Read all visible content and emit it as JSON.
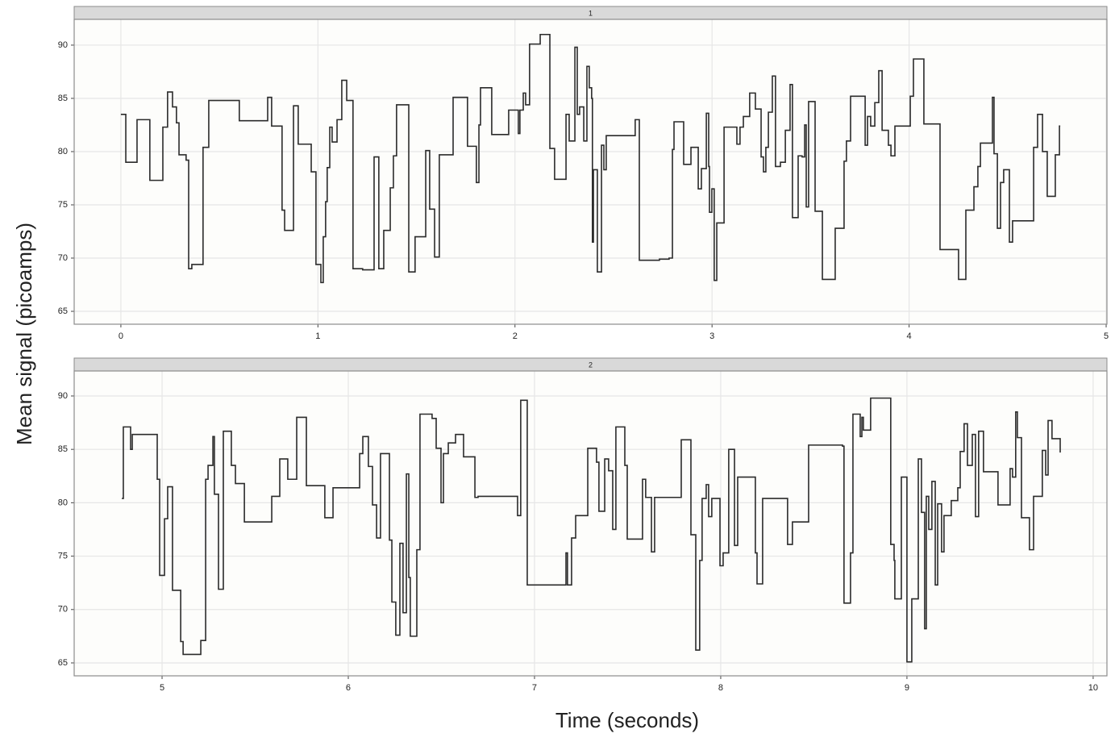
{
  "chart_data": [
    {
      "type": "line",
      "step": "post",
      "title": "1",
      "ylabel": "Mean signal (picoamps)",
      "color": "#2b2b2b",
      "grid": true,
      "xlim": [
        -0.237,
        5.004
      ],
      "ylim": [
        63.79,
        92.42
      ],
      "xticks": [
        0,
        1,
        2,
        3,
        4,
        5
      ],
      "yticks": [
        65,
        70,
        75,
        80,
        85,
        90
      ],
      "x": [
        0,
        0.025,
        0.082,
        0.147,
        0.213,
        0.237,
        0.262,
        0.282,
        0.295,
        0.331,
        0.344,
        0.36,
        0.417,
        0.446,
        0.601,
        0.745,
        0.765,
        0.818,
        0.831,
        0.876,
        0.9,
        0.966,
        0.99,
        1.015,
        1.027,
        1.039,
        1.047,
        1.06,
        1.072,
        1.097,
        1.121,
        1.146,
        1.178,
        1.227,
        1.285,
        1.309,
        1.334,
        1.367,
        1.383,
        1.399,
        1.461,
        1.493,
        1.547,
        1.567,
        1.592,
        1.616,
        1.686,
        1.759,
        1.804,
        1.817,
        1.825,
        1.882,
        1.968,
        2.017,
        2.025,
        2.042,
        2.054,
        2.074,
        2.128,
        2.177,
        2.201,
        2.259,
        2.275,
        2.304,
        2.316,
        2.328,
        2.349,
        2.365,
        2.377,
        2.389,
        2.393,
        2.398,
        2.418,
        2.439,
        2.451,
        2.463,
        2.61,
        2.631,
        2.733,
        2.782,
        2.799,
        2.807,
        2.856,
        2.893,
        2.93,
        2.946,
        2.971,
        2.983,
        2.987,
        2.999,
        3.011,
        3.024,
        3.061,
        3.126,
        3.142,
        3.159,
        3.191,
        3.22,
        3.249,
        3.261,
        3.273,
        3.286,
        3.306,
        3.322,
        3.347,
        3.372,
        3.396,
        3.408,
        3.437,
        3.457,
        3.47,
        3.478,
        3.49,
        3.523,
        3.56,
        3.625,
        3.67,
        3.682,
        3.703,
        3.777,
        3.789,
        3.805,
        3.826,
        3.846,
        3.863,
        3.895,
        3.908,
        3.928,
        4.006,
        4.022,
        4.075,
        4.157,
        4.251,
        4.288,
        4.329,
        4.349,
        4.362,
        4.423,
        4.431,
        4.448,
        4.464,
        4.48,
        4.509,
        4.525,
        4.632,
        4.652,
        4.677,
        4.701,
        4.742,
        4.763,
        4.767
      ],
      "values": [
        83.5,
        79.0,
        83.0,
        77.3,
        82.3,
        85.6,
        84.2,
        82.7,
        79.7,
        79.2,
        69.0,
        69.4,
        80.4,
        84.8,
        82.9,
        85.1,
        82.4,
        74.5,
        72.6,
        84.3,
        80.7,
        78.1,
        69.4,
        67.7,
        72.0,
        75.3,
        78.5,
        82.3,
        80.9,
        83.0,
        86.7,
        84.8,
        69.0,
        68.9,
        79.5,
        69.0,
        72.6,
        76.6,
        79.6,
        84.4,
        68.7,
        72.0,
        80.1,
        74.6,
        70.1,
        79.7,
        85.1,
        80.5,
        77.1,
        82.5,
        86.0,
        81.6,
        83.9,
        81.7,
        83.9,
        85.5,
        84.4,
        90.1,
        91.0,
        80.3,
        77.4,
        83.5,
        81.0,
        89.8,
        83.5,
        84.2,
        81.0,
        88.0,
        86.0,
        85.0,
        71.5,
        78.3,
        68.7,
        80.6,
        78.3,
        81.5,
        83.0,
        69.8,
        69.9,
        70.0,
        80.2,
        82.8,
        78.8,
        80.4,
        76.5,
        78.4,
        83.6,
        78.6,
        74.3,
        76.5,
        67.9,
        73.3,
        82.3,
        80.7,
        82.3,
        83.3,
        85.5,
        84.0,
        79.5,
        78.1,
        80.4,
        83.7,
        87.1,
        78.6,
        79.0,
        82.0,
        86.3,
        73.8,
        79.6,
        79.5,
        82.5,
        74.8,
        84.7,
        74.4,
        68.0,
        72.8,
        79.1,
        81.0,
        85.2,
        80.6,
        83.3,
        82.4,
        84.6,
        87.6,
        82.0,
        80.6,
        79.6,
        82.4,
        85.2,
        88.7,
        82.6,
        70.8,
        68.0,
        74.5,
        76.7,
        78.6,
        80.8,
        85.1,
        79.8,
        72.8,
        77.1,
        78.3,
        71.5,
        73.5,
        80.4,
        83.5,
        80.0,
        75.8,
        79.7,
        82.4,
        82.4
      ]
    },
    {
      "type": "line",
      "step": "post",
      "title": "2",
      "xlabel": "Time (seconds)",
      "color": "#2b2b2b",
      "grid": true,
      "xlim": [
        4.528,
        10.074
      ],
      "ylim": [
        63.79,
        92.34
      ],
      "xticks": [
        5,
        6,
        7,
        8,
        9,
        10
      ],
      "yticks": [
        65,
        70,
        75,
        80,
        85,
        90
      ],
      "x": [
        4.784,
        4.792,
        4.831,
        4.84,
        4.974,
        4.987,
        5.013,
        5.03,
        5.056,
        5.1,
        5.113,
        5.208,
        5.234,
        5.247,
        5.273,
        5.281,
        5.303,
        5.329,
        5.372,
        5.394,
        5.442,
        5.589,
        5.632,
        5.675,
        5.723,
        5.775,
        5.874,
        5.918,
        6.061,
        6.078,
        6.108,
        6.13,
        6.152,
        6.173,
        6.221,
        6.234,
        6.255,
        6.277,
        6.294,
        6.312,
        6.325,
        6.333,
        6.368,
        6.385,
        6.45,
        6.472,
        6.498,
        6.511,
        6.537,
        6.576,
        6.619,
        6.68,
        6.697,
        6.909,
        6.926,
        6.961,
        7.169,
        7.177,
        7.199,
        7.221,
        7.286,
        7.333,
        7.346,
        7.377,
        7.398,
        7.42,
        7.437,
        7.485,
        7.498,
        7.58,
        7.597,
        7.628,
        7.645,
        7.788,
        7.84,
        7.866,
        7.887,
        7.9,
        7.922,
        7.935,
        7.952,
        7.996,
        8.013,
        8.043,
        8.074,
        8.091,
        8.186,
        8.195,
        8.225,
        8.359,
        8.385,
        8.472,
        8.654,
        8.662,
        8.697,
        8.71,
        8.749,
        8.758,
        8.766,
        8.805,
        8.913,
        8.931,
        8.935,
        8.97,
        9.0,
        9.026,
        9.061,
        9.078,
        9.095,
        9.104,
        9.117,
        9.134,
        9.152,
        9.165,
        9.186,
        9.199,
        9.238,
        9.273,
        9.286,
        9.307,
        9.325,
        9.351,
        9.368,
        9.385,
        9.411,
        9.489,
        9.554,
        9.567,
        9.584,
        9.593,
        9.615,
        9.658,
        9.68,
        9.727,
        9.745,
        9.758,
        9.779,
        9.823
      ],
      "values": [
        80.4,
        87.1,
        85.0,
        86.4,
        82.2,
        73.2,
        78.5,
        81.5,
        71.8,
        67.0,
        65.8,
        67.1,
        82.2,
        83.5,
        86.2,
        80.8,
        71.9,
        86.7,
        83.5,
        81.8,
        78.2,
        80.6,
        84.1,
        82.2,
        88.0,
        81.6,
        78.6,
        81.4,
        84.6,
        86.2,
        83.4,
        79.8,
        76.7,
        84.6,
        76.5,
        70.7,
        67.6,
        76.2,
        69.7,
        82.7,
        73.0,
        67.5,
        75.6,
        88.3,
        87.9,
        85.1,
        80.0,
        84.6,
        85.6,
        86.4,
        84.3,
        80.5,
        80.6,
        78.8,
        89.6,
        72.3,
        75.3,
        72.3,
        76.7,
        78.8,
        85.1,
        83.8,
        79.2,
        84.1,
        83.0,
        77.5,
        87.1,
        83.5,
        76.6,
        82.2,
        80.5,
        75.4,
        80.5,
        85.9,
        77.0,
        66.2,
        74.6,
        80.4,
        81.7,
        78.7,
        80.4,
        74.1,
        75.3,
        85.0,
        76.0,
        82.4,
        75.3,
        72.4,
        80.4,
        76.1,
        78.2,
        85.4,
        85.3,
        70.6,
        75.3,
        88.3,
        86.2,
        88.0,
        86.8,
        89.8,
        76.1,
        74.6,
        71.0,
        82.4,
        65.1,
        71.0,
        84.1,
        79.1,
        68.2,
        80.6,
        77.5,
        82.0,
        72.3,
        79.9,
        75.4,
        78.8,
        80.2,
        81.4,
        84.8,
        87.4,
        83.5,
        86.4,
        78.7,
        86.7,
        82.9,
        79.8,
        83.2,
        82.4,
        88.5,
        86.1,
        78.6,
        75.6,
        80.6,
        84.9,
        82.6,
        87.7,
        86.0,
        84.7
      ]
    }
  ]
}
